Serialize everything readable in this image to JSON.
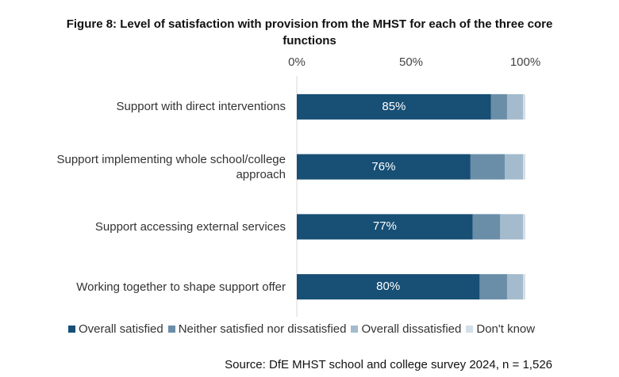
{
  "chart_data": {
    "type": "stacked_bar_horizontal",
    "title": "Figure 8: Level of satisfaction with provision from the MHST for each of the three core functions",
    "categories": [
      "Support with direct interventions",
      "Support implementing whole school/college approach",
      "Support accessing external services",
      "Working together to shape support offer"
    ],
    "series": [
      {
        "name": "Overall satisfied",
        "color": "#174f75",
        "values": [
          85,
          76,
          77,
          80
        ],
        "value_labels": [
          "85%",
          "76%",
          "77%",
          "80%"
        ]
      },
      {
        "name": "Neither satisfied nor dissatisfied",
        "color": "#6b8ea8",
        "values": [
          7,
          15,
          12,
          12
        ]
      },
      {
        "name": "Overall dissatisfied",
        "color": "#a3bbcc",
        "values": [
          7,
          8,
          10,
          7
        ]
      },
      {
        "name": "Don't know",
        "color": "#d3dfe8",
        "values": [
          1,
          1,
          1,
          1
        ]
      }
    ],
    "xlim": [
      0,
      100
    ],
    "xticks": [
      {
        "value": 0,
        "label": "0%"
      },
      {
        "value": 50,
        "label": "50%"
      },
      {
        "value": 100,
        "label": "100%"
      }
    ],
    "grid": false,
    "legend": "bottom",
    "source": "Source: DfE MHST school and college survey 2024, n = 1,526"
  }
}
